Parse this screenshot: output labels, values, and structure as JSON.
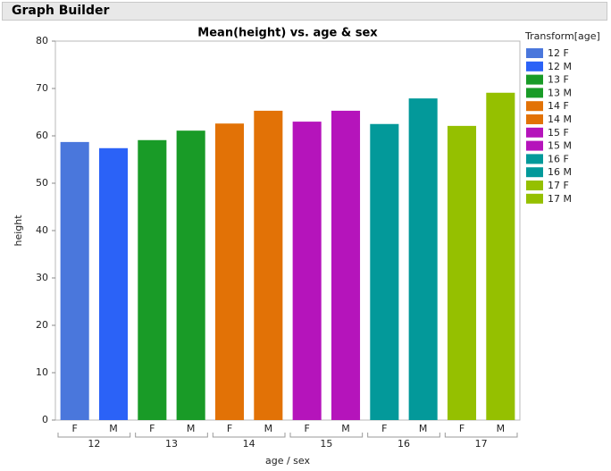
{
  "header": {
    "title": "Graph Builder"
  },
  "chart_data": {
    "type": "bar",
    "title": "Mean(height) vs. age & sex",
    "x_label": "age / sex",
    "y_label": "height",
    "categories": [
      "F",
      "M",
      "F",
      "M",
      "F",
      "M",
      "F",
      "M",
      "F",
      "M",
      "F",
      "M"
    ],
    "groups": [
      "12",
      "13",
      "14",
      "15",
      "16",
      "17"
    ],
    "values": [
      58.7,
      57.4,
      59.1,
      61.1,
      62.6,
      65.3,
      63.0,
      65.3,
      62.5,
      67.9,
      62.1,
      69.1
    ],
    "colors": [
      "#4a77dc",
      "#2b62f7",
      "#199b27",
      "#199b27",
      "#e27206",
      "#e27206",
      "#b514bb",
      "#b514bb",
      "#03999a",
      "#03999a",
      "#95c000",
      "#95c000"
    ],
    "legend": {
      "title": "Transform[age]",
      "items": [
        "12 F",
        "12 M",
        "13 F",
        "13 M",
        "14 F",
        "14 M",
        "15 F",
        "15 M",
        "16 F",
        "16 M",
        "17 F",
        "17 M"
      ]
    },
    "ylim": [
      0,
      80
    ],
    "yticks": [
      0,
      10,
      20,
      30,
      40,
      50,
      60,
      70,
      80
    ]
  }
}
